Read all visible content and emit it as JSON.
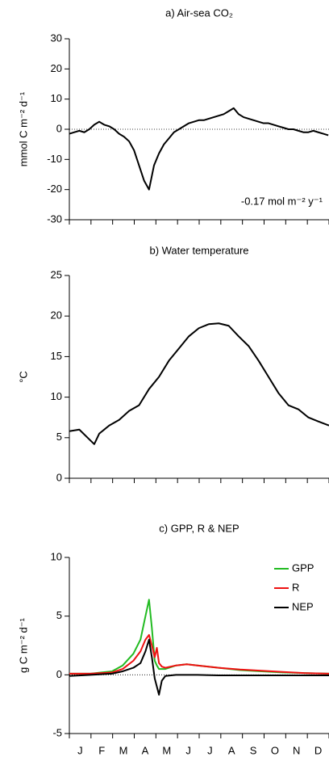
{
  "chart_data": [
    {
      "type": "line",
      "title": "a) Air-sea CO₂",
      "y_label": "mmol C m⁻² d⁻¹",
      "annotation": "-0.17 mol m⁻² y⁻¹",
      "xlim": [
        0,
        365
      ],
      "ylim": [
        -30,
        30
      ],
      "yticks": [
        -30,
        -20,
        -10,
        0,
        10,
        20,
        30
      ],
      "reference_line": 0,
      "x": [
        0,
        7,
        14,
        21,
        28,
        35,
        42,
        49,
        56,
        63,
        70,
        77,
        84,
        91,
        98,
        105,
        112,
        119,
        126,
        133,
        140,
        147,
        154,
        161,
        168,
        175,
        182,
        189,
        196,
        203,
        210,
        217,
        224,
        231,
        238,
        245,
        252,
        259,
        266,
        273,
        280,
        287,
        294,
        301,
        308,
        315,
        322,
        329,
        336,
        343,
        350,
        357,
        364
      ],
      "series": [
        {
          "color": "#000000",
          "values": [
            -1.5,
            -1,
            -0.5,
            -1,
            0,
            1.5,
            2.5,
            1.5,
            1,
            0,
            -1.5,
            -2.5,
            -4,
            -7,
            -12,
            -17,
            -20,
            -12,
            -8,
            -5,
            -3,
            -1,
            0,
            1,
            2,
            2.5,
            3,
            3,
            3.5,
            4,
            4.5,
            5,
            6,
            7,
            5,
            4,
            3.5,
            3,
            2.5,
            2,
            2,
            1.5,
            1,
            0.5,
            0,
            0,
            -0.5,
            -1,
            -1,
            -0.5,
            -1,
            -1.5,
            -2
          ]
        }
      ]
    },
    {
      "type": "line",
      "title": "b) Water temperature",
      "y_label": "°C",
      "xlim": [
        0,
        365
      ],
      "ylim": [
        0,
        25
      ],
      "yticks": [
        0,
        5,
        10,
        15,
        20,
        25
      ],
      "x": [
        0,
        14,
        28,
        35,
        42,
        56,
        70,
        84,
        98,
        112,
        126,
        140,
        154,
        168,
        182,
        196,
        210,
        224,
        238,
        252,
        266,
        280,
        294,
        308,
        322,
        336,
        350,
        365
      ],
      "series": [
        {
          "color": "#000000",
          "values": [
            5.8,
            6,
            4.8,
            4.2,
            5.5,
            6.5,
            7.2,
            8.3,
            9,
            11,
            12.5,
            14.5,
            16,
            17.5,
            18.5,
            19,
            19.1,
            18.8,
            17.5,
            16.3,
            14.5,
            12.5,
            10.5,
            9,
            8.5,
            7.5,
            7,
            6.5
          ]
        }
      ]
    },
    {
      "type": "line",
      "title": "c) GPP, R & NEP",
      "y_label": "g C m⁻² d⁻¹",
      "legend": "upper right",
      "xlim": [
        0,
        365
      ],
      "ylim": [
        -5,
        10
      ],
      "yticks": [
        -5,
        0,
        5,
        10
      ],
      "reference_line": 0,
      "categories": [
        "J",
        "F",
        "M",
        "A",
        "M",
        "J",
        "J",
        "A",
        "S",
        "O",
        "N",
        "D"
      ],
      "x": [
        0,
        30,
        60,
        75,
        90,
        100,
        107,
        112,
        116,
        120,
        123,
        126,
        130,
        135,
        150,
        165,
        180,
        210,
        240,
        270,
        300,
        330,
        365
      ],
      "series": [
        {
          "name": "GPP",
          "color": "#22bb22",
          "values": [
            0.1,
            0.1,
            0.3,
            0.8,
            1.8,
            3,
            5,
            6.4,
            4,
            1.2,
            0.8,
            0.5,
            0.5,
            0.5,
            0.8,
            0.9,
            0.8,
            0.6,
            0.4,
            0.3,
            0.2,
            0.15,
            0.1
          ]
        },
        {
          "name": "R",
          "color": "#ee1111",
          "values": [
            0.1,
            0.1,
            0.2,
            0.5,
            1.2,
            2,
            3,
            3.4,
            2.5,
            1.5,
            2.3,
            1,
            0.7,
            0.6,
            0.8,
            0.9,
            0.8,
            0.6,
            0.45,
            0.35,
            0.25,
            0.15,
            0.1
          ]
        },
        {
          "name": "NEP",
          "color": "#000000",
          "values": [
            -0.1,
            0,
            0.1,
            0.3,
            0.6,
            1,
            2,
            3,
            1.5,
            -0.3,
            -1,
            -1.7,
            -0.5,
            -0.1,
            0,
            0,
            0,
            -0.05,
            -0.05,
            -0.05,
            -0.05,
            -0.05,
            -0.05
          ]
        }
      ]
    }
  ]
}
